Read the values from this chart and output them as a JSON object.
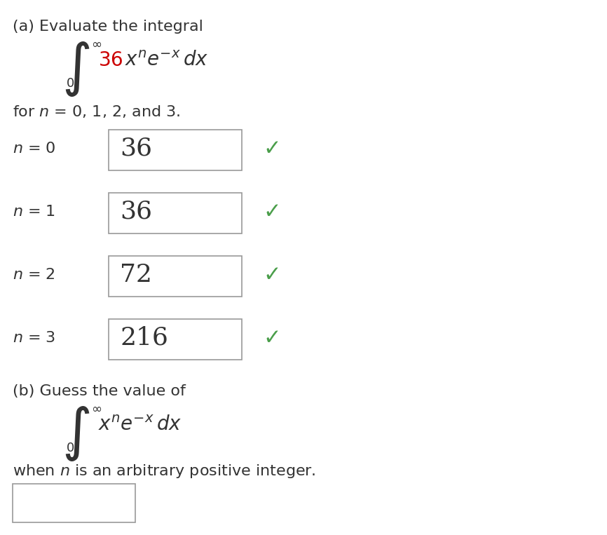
{
  "background_color": "#ffffff",
  "title_a": "(a) Evaluate the integral",
  "red_color": "#cc0000",
  "text_color": "#333333",
  "box_edge_color": "#999999",
  "checkmark_color": "#4a9e4a",
  "checkmark": "✓",
  "rows": [
    {
      "n": "0",
      "value": "36"
    },
    {
      "n": "1",
      "value": "36"
    },
    {
      "n": "2",
      "value": "72"
    },
    {
      "n": "3",
      "value": "216"
    }
  ],
  "title_b": "(b) Guess the value of",
  "when_text": "when n is an arbitrary positive integer.",
  "font_size_heading": 16,
  "font_size_for": 16,
  "font_size_label": 16,
  "font_size_value": 26,
  "font_size_integral": 42,
  "font_size_limits": 13,
  "font_size_integrand": 20,
  "font_size_check": 22
}
